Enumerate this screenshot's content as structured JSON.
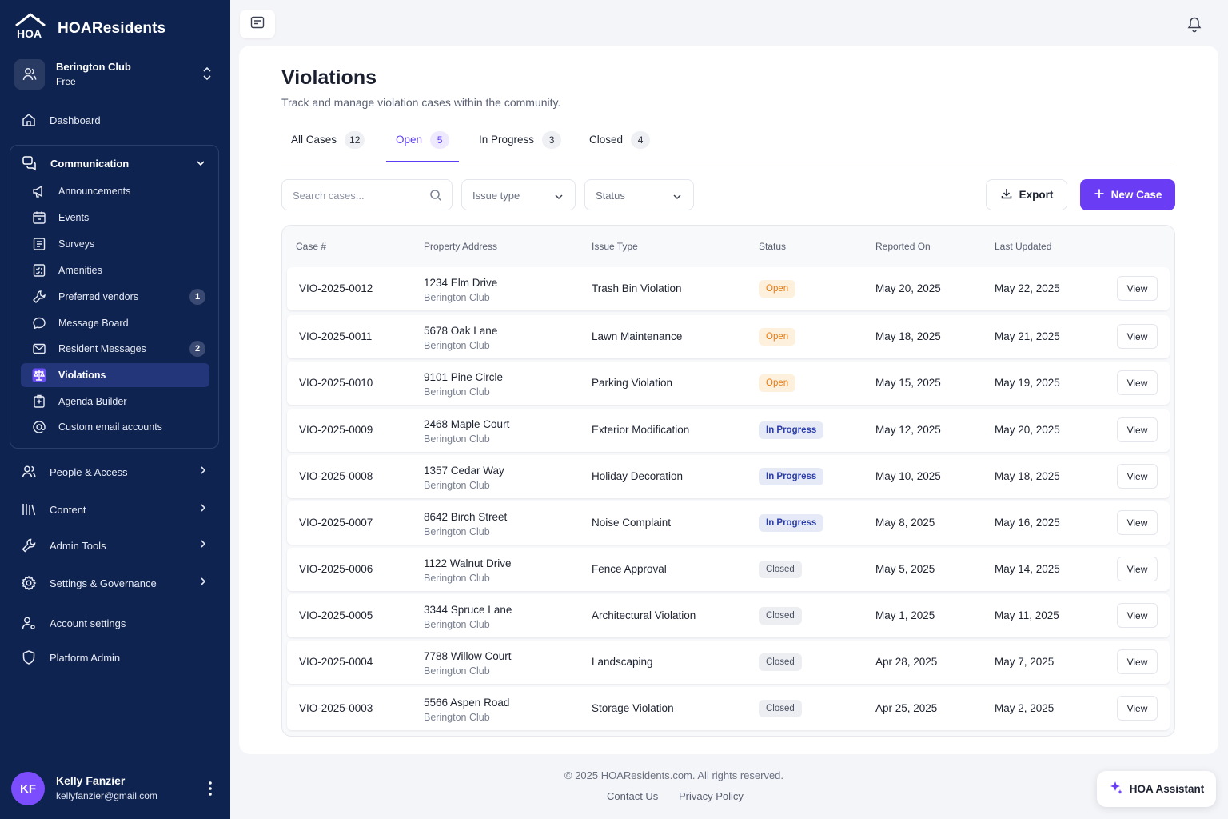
{
  "brand": {
    "name": "HOAResidents"
  },
  "org": {
    "name": "Berington Club",
    "plan": "Free"
  },
  "nav": {
    "dashboard": "Dashboard",
    "communication": "Communication",
    "people": "People & Access",
    "content": "Content",
    "admin_tools": "Admin Tools",
    "settings": "Settings & Governance",
    "account": "Account settings",
    "platform": "Platform Admin"
  },
  "communication_items": [
    {
      "label": "Announcements",
      "icon": "megaphone-icon"
    },
    {
      "label": "Events",
      "icon": "calendar-icon"
    },
    {
      "label": "Surveys",
      "icon": "survey-icon"
    },
    {
      "label": "Amenities",
      "icon": "amenities-icon"
    },
    {
      "label": "Preferred vendors",
      "icon": "wrench-icon",
      "badge": "1"
    },
    {
      "label": "Message Board",
      "icon": "chat-icon"
    },
    {
      "label": "Resident Messages",
      "icon": "mail-icon",
      "badge": "2"
    },
    {
      "label": "Violations",
      "icon": "scale-icon",
      "active": true
    },
    {
      "label": "Agenda Builder",
      "icon": "agenda-icon"
    },
    {
      "label": "Custom email accounts",
      "icon": "at-icon"
    }
  ],
  "user": {
    "initials": "KF",
    "name": "Kelly Fanzier",
    "email": "kellyfanzier@gmail.com"
  },
  "page": {
    "title": "Violations",
    "subtitle": "Track and manage violation cases within the community."
  },
  "tabs": [
    {
      "label": "All Cases",
      "count": "12"
    },
    {
      "label": "Open",
      "count": "5",
      "active": true
    },
    {
      "label": "In Progress",
      "count": "3"
    },
    {
      "label": "Closed",
      "count": "4"
    }
  ],
  "filters": {
    "search_placeholder": "Search cases...",
    "issue_type": "Issue type",
    "status": "Status"
  },
  "actions": {
    "export": "Export",
    "new_case": "New Case"
  },
  "table": {
    "headers": [
      "Case #",
      "Property Address",
      "Issue Type",
      "Status",
      "Reported On",
      "Last Updated"
    ],
    "view_label": "View",
    "rows": [
      {
        "case": "VIO-2025-0012",
        "address": "1234 Elm Drive",
        "community": "Berington Club",
        "issue": "Trash Bin Violation",
        "status": "Open",
        "reported": "May 20, 2025",
        "updated": "May 22, 2025"
      },
      {
        "case": "VIO-2025-0011",
        "address": "5678 Oak Lane",
        "community": "Berington Club",
        "issue": "Lawn Maintenance",
        "status": "Open",
        "reported": "May 18, 2025",
        "updated": "May 21, 2025"
      },
      {
        "case": "VIO-2025-0010",
        "address": "9101 Pine Circle",
        "community": "Berington Club",
        "issue": "Parking Violation",
        "status": "Open",
        "reported": "May 15, 2025",
        "updated": "May 19, 2025"
      },
      {
        "case": "VIO-2025-0009",
        "address": "2468 Maple Court",
        "community": "Berington Club",
        "issue": "Exterior Modification",
        "status": "In Progress",
        "reported": "May 12, 2025",
        "updated": "May 20, 2025"
      },
      {
        "case": "VIO-2025-0008",
        "address": "1357 Cedar Way",
        "community": "Berington Club",
        "issue": "Holiday Decoration",
        "status": "In Progress",
        "reported": "May 10, 2025",
        "updated": "May 18, 2025"
      },
      {
        "case": "VIO-2025-0007",
        "address": "8642 Birch Street",
        "community": "Berington Club",
        "issue": "Noise Complaint",
        "status": "In Progress",
        "reported": "May 8, 2025",
        "updated": "May 16, 2025"
      },
      {
        "case": "VIO-2025-0006",
        "address": "1122 Walnut Drive",
        "community": "Berington Club",
        "issue": "Fence Approval",
        "status": "Closed",
        "reported": "May 5, 2025",
        "updated": "May 14, 2025"
      },
      {
        "case": "VIO-2025-0005",
        "address": "3344 Spruce Lane",
        "community": "Berington Club",
        "issue": "Architectural Violation",
        "status": "Closed",
        "reported": "May 1, 2025",
        "updated": "May 11, 2025"
      },
      {
        "case": "VIO-2025-0004",
        "address": "7788 Willow Court",
        "community": "Berington Club",
        "issue": "Landscaping",
        "status": "Closed",
        "reported": "Apr 28, 2025",
        "updated": "May 7, 2025"
      },
      {
        "case": "VIO-2025-0003",
        "address": "5566 Aspen Road",
        "community": "Berington Club",
        "issue": "Storage Violation",
        "status": "Closed",
        "reported": "Apr 25, 2025",
        "updated": "May 2, 2025"
      }
    ]
  },
  "footer": {
    "copyright": "© 2025 HOAResidents.com. All rights reserved.",
    "contact": "Contact Us",
    "privacy": "Privacy Policy"
  },
  "assistant": {
    "label": "HOA Assistant"
  },
  "colors": {
    "sidebar": "#0f2350",
    "accent": "#6a3df5",
    "open": "#e57a12",
    "in_progress": "#2b3da8",
    "closed": "#4b5263"
  }
}
